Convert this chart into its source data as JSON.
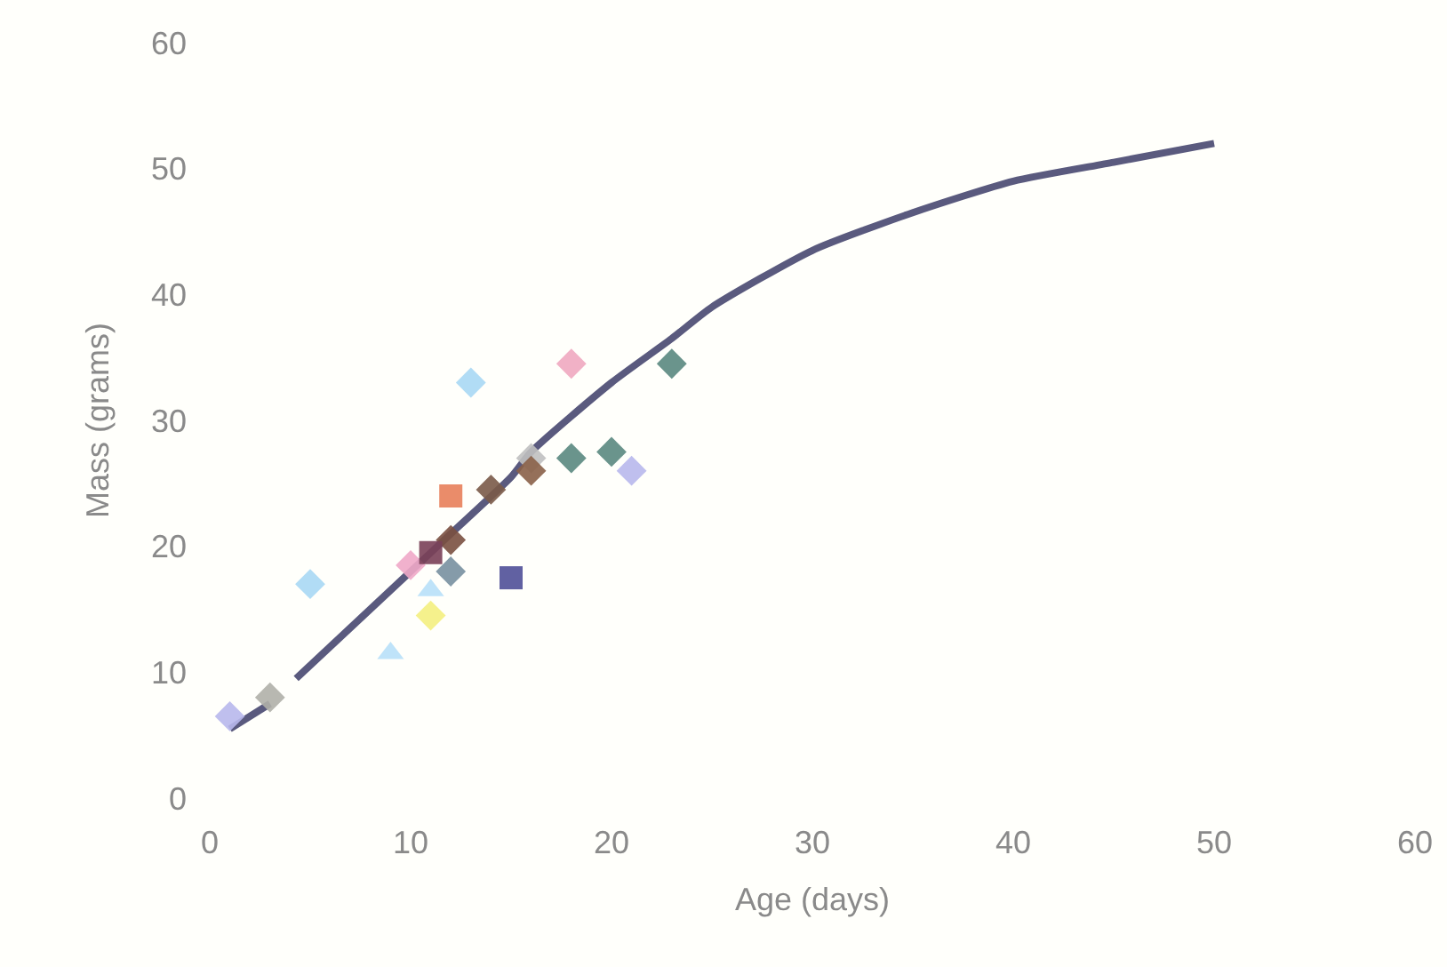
{
  "chart_data": {
    "type": "scatter",
    "xlabel": "Age (days)",
    "ylabel": "Mass (grams)",
    "xlim": [
      0,
      60
    ],
    "xticks": [
      0,
      10,
      20,
      30,
      40,
      50,
      60
    ],
    "ylim": [
      0,
      60
    ],
    "yticks": [
      0,
      10,
      20,
      30,
      40,
      50,
      60
    ],
    "grid": false,
    "series": [
      {
        "type": "line",
        "color": "#5a5a7e",
        "marker": "none",
        "line_style": "solid",
        "x": [
          1,
          3,
          4,
          4.3,
          10,
          12,
          15,
          16,
          20,
          23,
          25,
          30,
          35,
          40,
          45,
          50
        ],
        "values": [
          5.5,
          7.5,
          null,
          9.5,
          18,
          21,
          25.5,
          27.5,
          33,
          36.5,
          39,
          43.5,
          46.5,
          49,
          50.5,
          52
        ]
      },
      {
        "marker": "diamond",
        "x": [
          1,
          3,
          5,
          11,
          10,
          12,
          12,
          13,
          14,
          16,
          16,
          18,
          18,
          20,
          21,
          23
        ],
        "values": [
          6.5,
          8,
          17,
          14.5,
          18.5,
          20.5,
          18,
          33,
          24.5,
          27,
          26,
          34.5,
          27,
          27.5,
          26,
          34.5
        ],
        "colors": [
          "#b8b8ec",
          "#b0b0a8",
          "#a8d8f4",
          "#f4f080",
          "#f0a8c8",
          "#7a5040",
          "#7890a0",
          "#a8d8f4",
          "#7a5a48",
          "#c0c0c0",
          "#8a6048",
          "#f0a8c0",
          "#5a8880",
          "#5a8880",
          "#b8b8ec",
          "#5a8880"
        ]
      },
      {
        "marker": "square",
        "x": [
          11,
          12,
          15
        ],
        "values": [
          19.5,
          24,
          17.5
        ],
        "colors": [
          "#7a4058",
          "#e8805a",
          "#505098"
        ]
      },
      {
        "marker": "triangle",
        "x": [
          9,
          11
        ],
        "values": [
          11.5,
          16.5
        ],
        "colors": [
          "#b8e0f8",
          "#b8e0f8"
        ]
      }
    ]
  }
}
